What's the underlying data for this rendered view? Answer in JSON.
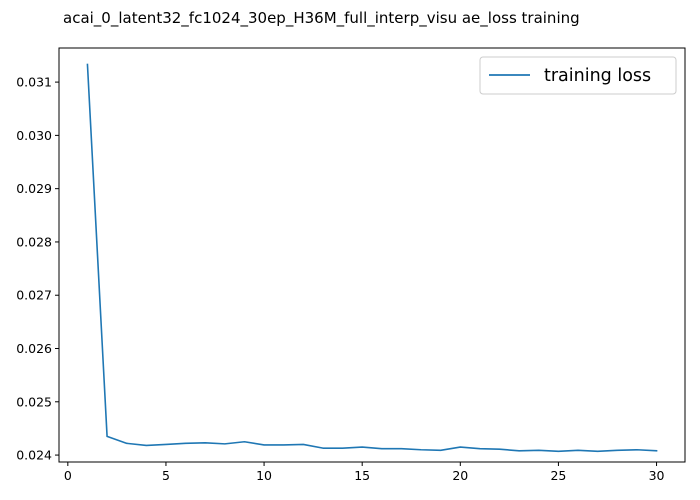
{
  "chart_data": {
    "type": "line",
    "title": "acai_0_latent32_fc1024_30ep_H36M_full_interp_visu ae_loss training",
    "xlabel": "",
    "ylabel": "",
    "xlim": [
      -0.45,
      31.45
    ],
    "ylim": [
      0.02387,
      0.03164
    ],
    "x_ticks": [
      0,
      5,
      10,
      15,
      20,
      25,
      30
    ],
    "y_ticks": [
      0.024,
      0.025,
      0.026,
      0.027,
      0.028,
      0.029,
      0.03,
      0.031
    ],
    "y_tick_labels": [
      "0.024",
      "0.025",
      "0.026",
      "0.027",
      "0.028",
      "0.029",
      "0.030",
      "0.031"
    ],
    "grid": false,
    "legend_position": "top-right",
    "series": [
      {
        "name": "training loss",
        "color": "#1f77b4",
        "x": [
          1,
          2,
          3,
          4,
          5,
          6,
          7,
          8,
          9,
          10,
          11,
          12,
          13,
          14,
          15,
          16,
          17,
          18,
          19,
          20,
          21,
          22,
          23,
          24,
          25,
          26,
          27,
          28,
          29,
          30
        ],
        "values": [
          0.03133,
          0.02435,
          0.02422,
          0.02418,
          0.0242,
          0.02422,
          0.02423,
          0.02421,
          0.02425,
          0.02419,
          0.02419,
          0.0242,
          0.02413,
          0.02413,
          0.02415,
          0.02412,
          0.02412,
          0.0241,
          0.02409,
          0.02415,
          0.02412,
          0.02411,
          0.02408,
          0.02409,
          0.02407,
          0.02409,
          0.02407,
          0.02409,
          0.0241,
          0.02408
        ]
      }
    ]
  }
}
